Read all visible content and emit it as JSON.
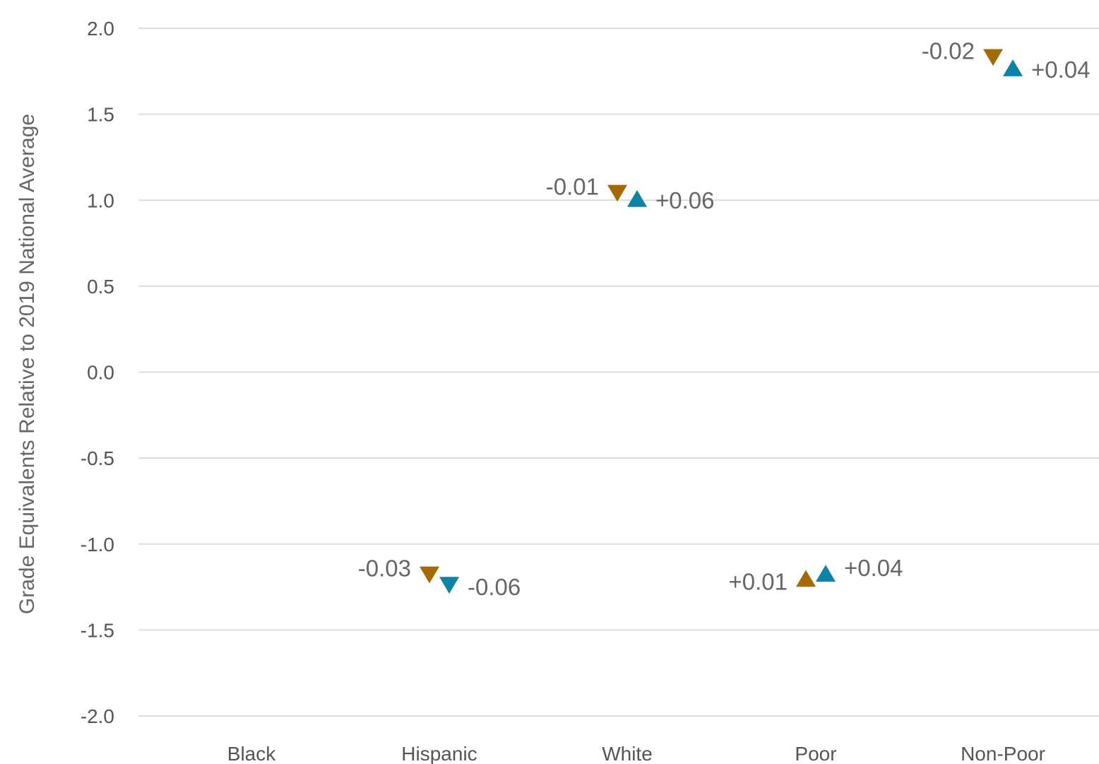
{
  "chart_data": {
    "type": "scatter",
    "title": "",
    "xlabel": "",
    "ylabel": "Grade Equivalents Relative to 2019 National Average",
    "ylim": [
      -2.0,
      2.0
    ],
    "y_ticks": [
      "2.0",
      "1.5",
      "1.0",
      "0.5",
      "0.0",
      "-0.5",
      "-1.0",
      "-1.5",
      "-2.0"
    ],
    "y_tick_values": [
      2.0,
      1.5,
      1.0,
      0.5,
      0.0,
      -0.5,
      -1.0,
      -1.5,
      -2.0
    ],
    "grid": true,
    "legend": "none",
    "categories": [
      "Black",
      "Hispanic",
      "White",
      "Poor",
      "Non-Poor"
    ],
    "series": [
      {
        "color": "#a66a05",
        "points": [
          {
            "category": "Hispanic",
            "value": -1.18,
            "marker": "down",
            "label": "-0.03"
          },
          {
            "category": "White",
            "value": 1.04,
            "marker": "down",
            "label": "-0.01"
          },
          {
            "category": "Poor",
            "value": -1.2,
            "marker": "up",
            "label": "+0.01"
          },
          {
            "category": "Non-Poor",
            "value": 1.83,
            "marker": "down",
            "label": "-0.02"
          }
        ]
      },
      {
        "color": "#0c84a8",
        "points": [
          {
            "category": "Hispanic",
            "value": -1.24,
            "marker": "down",
            "label": "-0.06"
          },
          {
            "category": "White",
            "value": 1.01,
            "marker": "up",
            "label": "+0.06"
          },
          {
            "category": "Poor",
            "value": -1.17,
            "marker": "up",
            "label": "+0.04"
          },
          {
            "category": "Non-Poor",
            "value": 1.77,
            "marker": "up",
            "label": "+0.04"
          }
        ]
      }
    ]
  }
}
